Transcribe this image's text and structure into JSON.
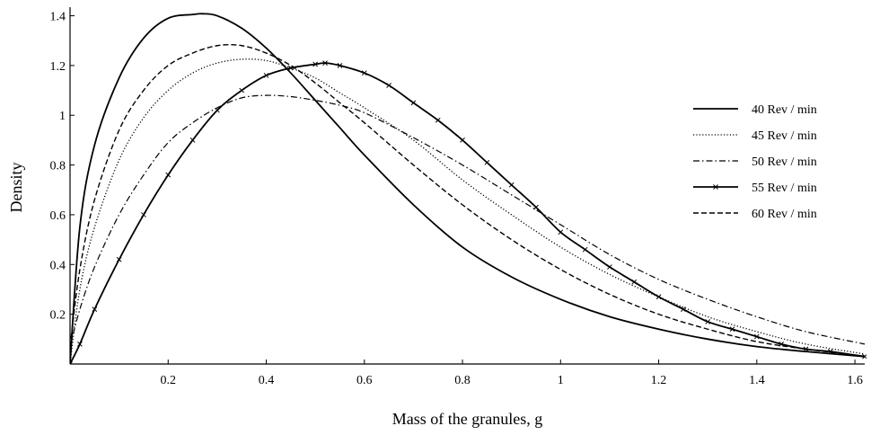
{
  "chart_data": {
    "type": "line",
    "title": "",
    "xlabel": "Mass of the granules, g",
    "ylabel": "Density",
    "xlim": [
      0,
      1.62
    ],
    "ylim": [
      0,
      1.42
    ],
    "x_ticks": [
      {
        "value": 0.2,
        "label": "0.2"
      },
      {
        "value": 0.4,
        "label": "0.4"
      },
      {
        "value": 0.6,
        "label": "0.6"
      },
      {
        "value": 0.8,
        "label": "0.8"
      },
      {
        "value": 1.0,
        "label": "1"
      },
      {
        "value": 1.2,
        "label": "1.2"
      },
      {
        "value": 1.4,
        "label": "1.4"
      },
      {
        "value": 1.6,
        "label": "1.6"
      }
    ],
    "y_ticks": [
      {
        "value": 0.2,
        "label": "0.2"
      },
      {
        "value": 0.4,
        "label": "0.4"
      },
      {
        "value": 0.6,
        "label": "0.6"
      },
      {
        "value": 0.8,
        "label": "0.8"
      },
      {
        "value": 1.0,
        "label": "1"
      },
      {
        "value": 1.2,
        "label": "1.2"
      },
      {
        "value": 1.4,
        "label": "1.4"
      }
    ],
    "grid": false,
    "legend_position": "right",
    "series": [
      {
        "name": "40 Rev / min",
        "style": "solid",
        "color": "#000000",
        "x": [
          0,
          0.02,
          0.05,
          0.1,
          0.15,
          0.2,
          0.25,
          0.27,
          0.3,
          0.35,
          0.4,
          0.45,
          0.5,
          0.55,
          0.6,
          0.7,
          0.8,
          0.9,
          1.0,
          1.1,
          1.2,
          1.3,
          1.4,
          1.5,
          1.62
        ],
        "y": [
          0,
          0.55,
          0.88,
          1.15,
          1.31,
          1.39,
          1.405,
          1.408,
          1.4,
          1.35,
          1.27,
          1.17,
          1.06,
          0.95,
          0.84,
          0.64,
          0.47,
          0.35,
          0.26,
          0.19,
          0.14,
          0.1,
          0.07,
          0.05,
          0.03
        ]
      },
      {
        "name": "45 Rev / min",
        "style": "dotted",
        "color": "#000000",
        "x": [
          0,
          0.02,
          0.05,
          0.1,
          0.15,
          0.2,
          0.25,
          0.3,
          0.35,
          0.4,
          0.45,
          0.5,
          0.55,
          0.6,
          0.7,
          0.8,
          0.9,
          1.0,
          1.1,
          1.2,
          1.3,
          1.4,
          1.5,
          1.62
        ],
        "y": [
          0,
          0.3,
          0.55,
          0.82,
          0.99,
          1.1,
          1.17,
          1.21,
          1.225,
          1.22,
          1.19,
          1.15,
          1.09,
          1.03,
          0.9,
          0.74,
          0.6,
          0.47,
          0.36,
          0.27,
          0.19,
          0.13,
          0.08,
          0.04
        ]
      },
      {
        "name": "50 Rev / min",
        "style": "dashdot",
        "color": "#000000",
        "x": [
          0,
          0.02,
          0.05,
          0.1,
          0.15,
          0.2,
          0.25,
          0.3,
          0.35,
          0.4,
          0.45,
          0.5,
          0.55,
          0.6,
          0.7,
          0.8,
          0.9,
          1.0,
          1.1,
          1.2,
          1.3,
          1.4,
          1.5,
          1.62
        ],
        "y": [
          0.07,
          0.22,
          0.39,
          0.6,
          0.76,
          0.89,
          0.97,
          1.03,
          1.07,
          1.08,
          1.075,
          1.06,
          1.04,
          1.01,
          0.91,
          0.8,
          0.68,
          0.56,
          0.44,
          0.34,
          0.26,
          0.19,
          0.13,
          0.08
        ]
      },
      {
        "name": "55 Rev / min",
        "style": "solid-x",
        "color": "#000000",
        "x": [
          0,
          0.02,
          0.05,
          0.1,
          0.15,
          0.2,
          0.25,
          0.3,
          0.35,
          0.4,
          0.45,
          0.5,
          0.52,
          0.55,
          0.6,
          0.65,
          0.7,
          0.75,
          0.8,
          0.85,
          0.9,
          0.95,
          1.0,
          1.05,
          1.1,
          1.15,
          1.2,
          1.25,
          1.3,
          1.35,
          1.4,
          1.45,
          1.5,
          1.55,
          1.62
        ],
        "y": [
          0.0,
          0.08,
          0.22,
          0.42,
          0.6,
          0.76,
          0.9,
          1.02,
          1.1,
          1.16,
          1.19,
          1.205,
          1.21,
          1.2,
          1.17,
          1.12,
          1.05,
          0.98,
          0.9,
          0.81,
          0.72,
          0.63,
          0.53,
          0.46,
          0.39,
          0.33,
          0.27,
          0.22,
          0.17,
          0.14,
          0.11,
          0.08,
          0.06,
          0.05,
          0.03
        ]
      },
      {
        "name": "60 Rev / min",
        "style": "dashed",
        "color": "#000000",
        "x": [
          0,
          0.02,
          0.05,
          0.1,
          0.15,
          0.2,
          0.25,
          0.3,
          0.35,
          0.4,
          0.45,
          0.5,
          0.55,
          0.6,
          0.7,
          0.8,
          0.9,
          1.0,
          1.1,
          1.2,
          1.3,
          1.4,
          1.5,
          1.62
        ],
        "y": [
          0.07,
          0.38,
          0.66,
          0.94,
          1.1,
          1.2,
          1.25,
          1.28,
          1.28,
          1.25,
          1.2,
          1.13,
          1.05,
          0.97,
          0.8,
          0.64,
          0.5,
          0.38,
          0.28,
          0.2,
          0.14,
          0.09,
          0.06,
          0.03
        ]
      }
    ]
  }
}
